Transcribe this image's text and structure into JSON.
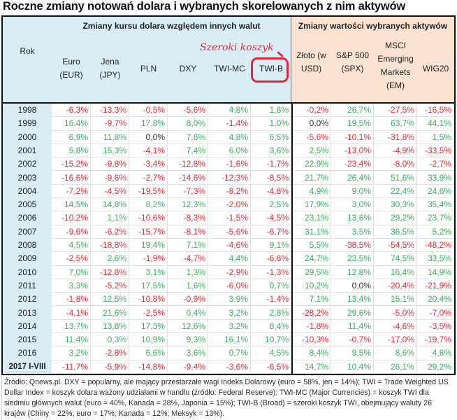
{
  "title": "Roczne zmiany notowań dolara i wybranych skorelowanych z nim aktywów",
  "groups": {
    "currencies": "Zmiany kursu dolara względem innych walut",
    "assets": "Zmiany wartości wybranych aktywów"
  },
  "annotation": {
    "text": "Szeroki koszyk",
    "highlight_column": "TWI-B",
    "color": "#e2283b"
  },
  "colors": {
    "positive": "#3aae5e",
    "negative": "#ee2833",
    "header_blue": "#daedf4",
    "header_peach": "#fbe3d3"
  },
  "columns": [
    {
      "key": "rok",
      "label": "Rok"
    },
    {
      "key": "eur",
      "label": "Euro (EUR)"
    },
    {
      "key": "jpy",
      "label": "Jena (JPY)"
    },
    {
      "key": "pln",
      "label": "PLN"
    },
    {
      "key": "dxy",
      "label": "DXY"
    },
    {
      "key": "twimc",
      "label": "TWI-MC"
    },
    {
      "key": "twib",
      "label": "TWI-B"
    },
    {
      "key": "zloto",
      "label": "Złoto (w USD)"
    },
    {
      "key": "spx",
      "label": "S&P 500 (SPX)"
    },
    {
      "key": "msci",
      "label": "MSCI Emerging Markets (EM)"
    },
    {
      "key": "wig20",
      "label": "WIG20"
    }
  ],
  "rows": [
    [
      "1998",
      "-6,3%",
      "-13,3%",
      "-0,5%",
      "-5,6%",
      "4,8%",
      "1,8%",
      "-0,2%",
      "26,7%",
      "-27,5%",
      "-16,5%"
    ],
    [
      "1999",
      "16,4%",
      "-9,7%",
      "17,8%",
      "8,0%",
      "-1,4%",
      "1,0%",
      "0,0%",
      "19,5%",
      "63,7%",
      "44,1%"
    ],
    [
      "2000",
      "6,9%",
      "11,8%",
      "0,0%",
      "7,6%",
      "4,8%",
      "6,5%",
      "-5,6%",
      "-10,1%",
      "-31,8%",
      "1,5%"
    ],
    [
      "2001",
      "5,8%",
      "15,3%",
      "-4,1%",
      "7,4%",
      "6,0%",
      "3,6%",
      "2,5%",
      "-13,0%",
      "-4,9%",
      "-33,5%"
    ],
    [
      "2002",
      "-15,2%",
      "-9,8%",
      "-3,4%",
      "-12,8%",
      "-1,6%",
      "-1,7%",
      "22,9%",
      "-23,4%",
      "-8,0%",
      "-2,7%"
    ],
    [
      "2003",
      "-16,6%",
      "-9,6%",
      "-2,7%",
      "-14,6%",
      "-12,3%",
      "-8,5%",
      "21,7%",
      "26,4%",
      "51,6%",
      "33,9%"
    ],
    [
      "2004",
      "-7,2%",
      "-4,5%",
      "-19,5%",
      "-7,3%",
      "-8,2%",
      "-4,8%",
      "4,9%",
      "9,0%",
      "22,4%",
      "24,6%"
    ],
    [
      "2005",
      "14,5%",
      "14,8%",
      "8,2%",
      "12,3%",
      "-2,0%",
      "2,5%",
      "17,9%",
      "3,0%",
      "30,3%",
      "35,4%"
    ],
    [
      "2006",
      "-10,2%",
      "1,1%",
      "-10,6%",
      "-8,3%",
      "-1,5%",
      "-4,5%",
      "23,1%",
      "13,6%",
      "29,2%",
      "23,7%"
    ],
    [
      "2007",
      "-9,6%",
      "-6,2%",
      "-15,7%",
      "-8,1%",
      "-5,6%",
      "-6,7%",
      "31,1%",
      "3,5%",
      "36,5%",
      "5,2%"
    ],
    [
      "2008",
      "4,5%",
      "-18,8%",
      "19,4%",
      "7,1%",
      "-4,6%",
      "9,1%",
      "5,5%",
      "-38,5%",
      "-54,5%",
      "-48,2%"
    ],
    [
      "2009",
      "-2,5%",
      "2,6%",
      "-1,9%",
      "-4,7%",
      "4,4%",
      "-6,8%",
      "24,7%",
      "23,5%",
      "74,5%",
      "33,5%"
    ],
    [
      "2010",
      "7,0%",
      "-12,8%",
      "3,1%",
      "1,3%",
      "-2,9%",
      "-1,3%",
      "29,5%",
      "12,8%",
      "16,4%",
      "14,9%"
    ],
    [
      "2011",
      "3,3%",
      "-5,2%",
      "17,5%",
      "1,6%",
      "-6,0%",
      "0,7%",
      "10,2%",
      "0,0%",
      "-20,4%",
      "-21,9%"
    ],
    [
      "2012",
      "-1,8%",
      "12,5%",
      "-10,8%",
      "-0,9%",
      "3,9%",
      "-1,4%",
      "7,1%",
      "13,4%",
      "15,1%",
      "20,4%"
    ],
    [
      "2013",
      "-4,1%",
      "21,6%",
      "-2,5%",
      "0,4%",
      "3,2%",
      "2,8%",
      "-28,2%",
      "29,6%",
      "-5,0%",
      "-7,0%"
    ],
    [
      "2014",
      "13,7%",
      "13,8%",
      "17,3%",
      "12,6%",
      "3,2%",
      "8,4%",
      "-1,8%",
      "11,4%",
      "-4,6%",
      "-3,5%"
    ],
    [
      "2015",
      "11,4%",
      "0,3%",
      "10,9%",
      "9,3%",
      "16,1%",
      "10,7%",
      "-10,3%",
      "-0,7%",
      "-17,0%",
      "-19,7%"
    ],
    [
      "2016",
      "3,2%",
      "-2,8%",
      "6,6%",
      "3,6%",
      "0,7%",
      "4,5%",
      "8,4%",
      "9,5%",
      "8,6%",
      "4,8%"
    ],
    [
      "2017 I-VIII",
      "-11,7%",
      "-5,9%",
      "-14,8%",
      "-9,4%",
      "-3,6%",
      "-6,5%",
      "14,7%",
      "10,4%",
      "26,1%",
      "29,2%"
    ]
  ],
  "footnote": "Źródło: Qnews.pl. DXY = popularny, ale mający przestarzałe wagi Indeks Dolarowy (euro = 58%, jen = 14%); TWI = Trade Weighted US Dollar Index = koszyk dolara ważony udziałami w handlu (źródło: Federal Reserve); TWI-MC (Major Currencies) = koszyk TWI dla siedmiu głównych walut (euro = 40%, Kanada = 28%, Japonia = 15%); TWI-B (Broad) = szeroki koszyk TWI, obejmujący waluty 26 krajów (Chiny = 22%; euro = 17%; Kanada = 12%; Meksyk = 13%)."
}
